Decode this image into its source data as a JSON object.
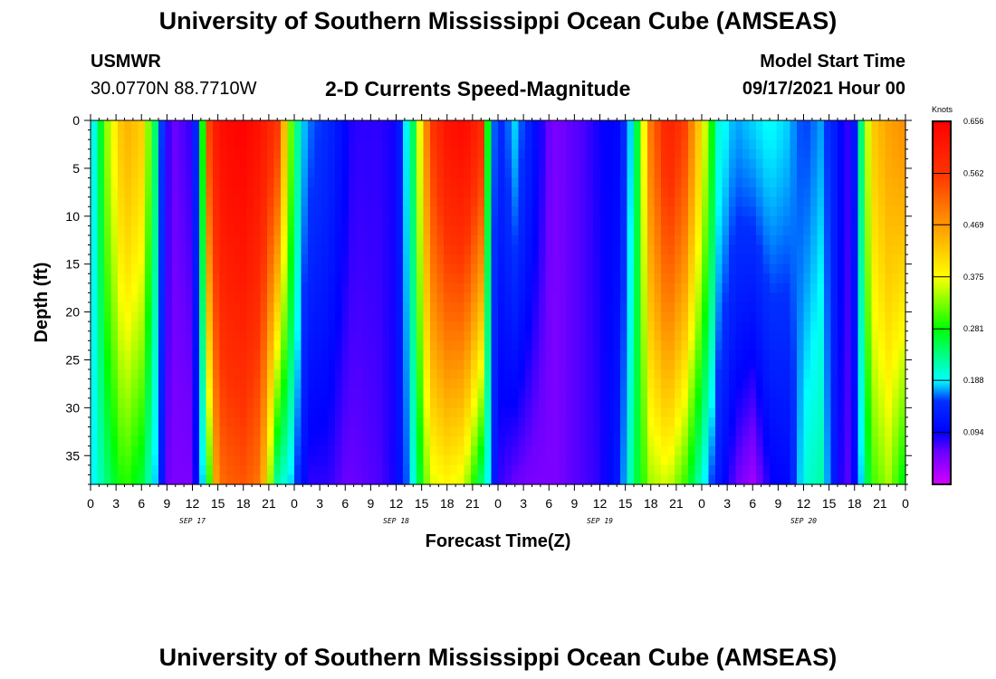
{
  "header": {
    "title": "University of Southern Mississippi Ocean Cube (AMSEAS)",
    "station": "USMWR",
    "coords": "30.0770N  88.7710W",
    "chart_title": "2-D Currents Speed-Magnitude",
    "model_label": "Model Start Time",
    "model_time": "09/17/2021 Hour 00"
  },
  "footer": {
    "title": "University of Southern Mississippi Ocean Cube (AMSEAS)"
  },
  "chart_data": {
    "type": "heatmap",
    "title": "2-D Currents Speed-Magnitude",
    "xlabel": "Forecast Time(Z)",
    "ylabel": "Depth (ft)",
    "x_range_hours": [
      0,
      96
    ],
    "x_tick_labels": [
      "0",
      "3",
      "6",
      "9",
      "12",
      "15",
      "18",
      "21",
      "0",
      "3",
      "6",
      "9",
      "12",
      "15",
      "18",
      "21",
      "0",
      "3",
      "6",
      "9",
      "12",
      "15",
      "18",
      "21",
      "0",
      "3",
      "6",
      "9",
      "12",
      "15",
      "18",
      "21",
      "0"
    ],
    "day_labels": [
      "SEP 17",
      "SEP 18",
      "SEP 19",
      "SEP 20"
    ],
    "y_range": [
      0,
      38
    ],
    "y_ticks": [
      0,
      5,
      10,
      15,
      20,
      25,
      30,
      35
    ],
    "colorbar": {
      "units": "Knots",
      "min": 0.0,
      "max": 0.656,
      "tick_labels": [
        "0.656",
        "0.562",
        "0.469",
        "0.375",
        "0.281",
        "0.188",
        "0.094"
      ],
      "tick_values": [
        0.656,
        0.562,
        0.469,
        0.375,
        0.281,
        0.188,
        0.094
      ]
    },
    "profile_hours": [
      0,
      2,
      4,
      6,
      8,
      9,
      10,
      12,
      13,
      14,
      15,
      16,
      18,
      20,
      22,
      24,
      25,
      26,
      28,
      30,
      31,
      34,
      36,
      38,
      40,
      42,
      44,
      46,
      47,
      48,
      50,
      52,
      54,
      55,
      56,
      58,
      60,
      62,
      64,
      66,
      68,
      70,
      72,
      74,
      76,
      78,
      80,
      82,
      84,
      86,
      88,
      89,
      90,
      92,
      94,
      96
    ],
    "surface_speed_knots": [
      0.16,
      0.34,
      0.45,
      0.42,
      0.2,
      0.08,
      0.06,
      0.08,
      0.22,
      0.55,
      0.62,
      0.64,
      0.65,
      0.62,
      0.56,
      0.26,
      0.18,
      0.16,
      0.14,
      0.1,
      0.08,
      0.08,
      0.09,
      0.25,
      0.55,
      0.62,
      0.64,
      0.58,
      0.2,
      0.13,
      0.18,
      0.12,
      0.06,
      0.05,
      0.06,
      0.07,
      0.09,
      0.1,
      0.2,
      0.5,
      0.6,
      0.55,
      0.4,
      0.2,
      0.17,
      0.18,
      0.19,
      0.18,
      0.15,
      0.17,
      0.12,
      0.07,
      0.12,
      0.42,
      0.46,
      0.48
    ],
    "bottom_speed_knots": [
      0.18,
      0.24,
      0.3,
      0.26,
      0.16,
      0.06,
      0.05,
      0.05,
      0.15,
      0.3,
      0.5,
      0.52,
      0.53,
      0.5,
      0.22,
      0.17,
      0.11,
      0.08,
      0.08,
      0.06,
      0.06,
      0.07,
      0.09,
      0.2,
      0.36,
      0.38,
      0.36,
      0.24,
      0.18,
      0.08,
      0.06,
      0.05,
      0.05,
      0.05,
      0.06,
      0.07,
      0.08,
      0.12,
      0.24,
      0.34,
      0.36,
      0.3,
      0.2,
      0.12,
      0.06,
      0.03,
      0.09,
      0.1,
      0.2,
      0.22,
      0.1,
      0.06,
      0.1,
      0.3,
      0.34,
      0.26
    ]
  }
}
